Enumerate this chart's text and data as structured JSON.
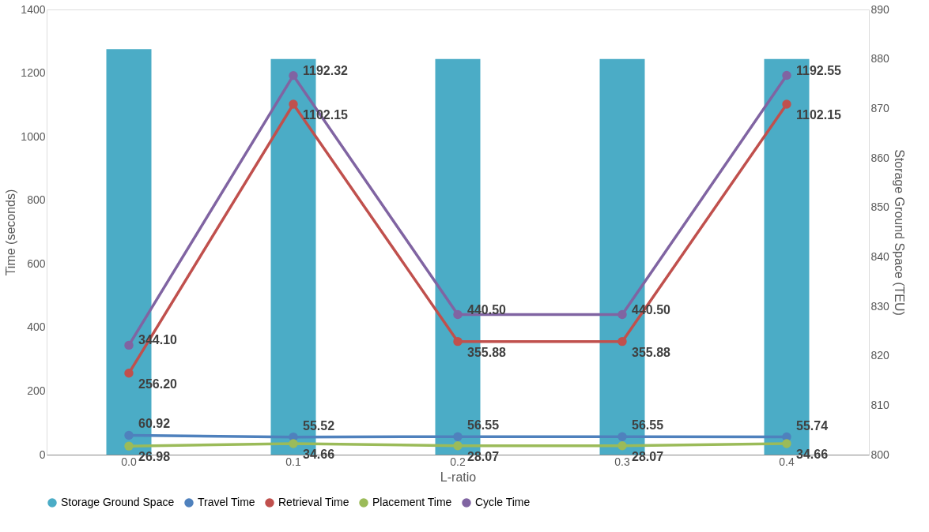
{
  "chart_data": {
    "type": "line",
    "xlabel": "L-ratio",
    "ylabel": "Time (seconds)",
    "y2label": "Storage Ground Space (TEU)",
    "categories": [
      "0.0",
      "0.1",
      "0.2",
      "0.3",
      "0.4"
    ],
    "ylim": [
      0,
      1400
    ],
    "yticks": [
      0,
      200,
      400,
      600,
      800,
      1000,
      1200,
      1400
    ],
    "y2lim": [
      800,
      890
    ],
    "y2ticks": [
      800,
      810,
      820,
      830,
      840,
      850,
      860,
      870,
      880,
      890
    ],
    "grid": false,
    "legend": "bottom",
    "marker": "circle",
    "line_style": "solid",
    "series": [
      {
        "name": "Storage Ground Space",
        "type": "bar",
        "axis": "y2",
        "color": "#4bacc6",
        "values": [
          882,
          880,
          880,
          880,
          880
        ]
      },
      {
        "name": "Travel Time",
        "color": "#4f81bd",
        "values": [
          60.92,
          55.52,
          56.55,
          56.55,
          55.74
        ],
        "value_labels": [
          "60.92",
          "55.52",
          "56.55",
          "56.55",
          "55.74"
        ]
      },
      {
        "name": "Retrieval Time",
        "color": "#c0504d",
        "values": [
          256.2,
          1102.15,
          355.88,
          355.88,
          1102.15
        ],
        "value_labels": [
          "256.20",
          "1102.15",
          "355.88",
          "355.88",
          "1102.15"
        ]
      },
      {
        "name": "Placement Time",
        "color": "#9bbb59",
        "values": [
          26.98,
          34.66,
          28.07,
          28.07,
          34.66
        ],
        "value_labels": [
          "26.98",
          "34.66",
          "28.07",
          "28.07",
          "34.66"
        ]
      },
      {
        "name": "Cycle Time",
        "color": "#8064a2",
        "values": [
          344.1,
          1192.32,
          440.5,
          440.5,
          1192.55
        ],
        "value_labels": [
          "344.10",
          "1192.32",
          "440.50",
          "440.50",
          "1192.55"
        ]
      }
    ]
  }
}
